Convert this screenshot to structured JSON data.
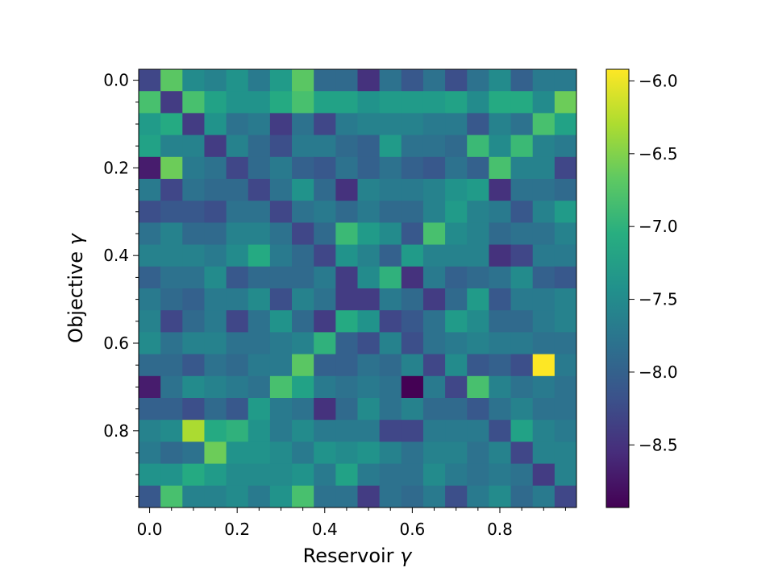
{
  "chart_data": {
    "type": "heatmap",
    "xlabel_text": "Reservoir ",
    "xlabel_symbol": "γ",
    "ylabel_text": "Objective ",
    "ylabel_symbol": "γ",
    "x_range": [
      -0.025,
      0.975
    ],
    "y_range": [
      -0.025,
      0.975
    ],
    "y_inverted": true,
    "x_ticks": [
      "0.0",
      "0.2",
      "0.4",
      "0.6",
      "0.8"
    ],
    "y_ticks": [
      "0.0",
      "0.2",
      "0.4",
      "0.6",
      "0.8"
    ],
    "tick_values": [
      0.0,
      0.2,
      0.4,
      0.6,
      0.8
    ],
    "minor_tick_values": [
      0.05,
      0.1,
      0.15,
      0.25,
      0.3,
      0.35,
      0.45,
      0.5,
      0.55,
      0.65,
      0.7,
      0.75,
      0.85,
      0.9,
      0.95
    ],
    "grid_step": 0.05,
    "grid_size": 20,
    "colormap": "viridis",
    "colorbar_range": [
      -8.93,
      -5.92
    ],
    "colorbar_ticks": [
      "−6.0",
      "−6.5",
      "−7.0",
      "−7.5",
      "−8.0",
      "−8.5"
    ],
    "colorbar_tick_values": [
      -6.0,
      -6.5,
      -7.0,
      -7.5,
      -8.0,
      -8.5
    ],
    "grid": false,
    "values": [
      [
        -8.3,
        -6.7,
        -7.5,
        -7.6,
        -7.4,
        -7.7,
        -7.3,
        -6.7,
        -7.9,
        -7.9,
        -8.5,
        -7.8,
        -8.1,
        -7.8,
        -8.2,
        -7.8,
        -7.5,
        -8.0,
        -7.7,
        -7.7
      ],
      [
        -6.8,
        -8.4,
        -6.8,
        -7.2,
        -7.4,
        -7.4,
        -7.1,
        -6.8,
        -7.2,
        -7.2,
        -7.4,
        -7.3,
        -7.3,
        -7.3,
        -7.2,
        -7.5,
        -7.1,
        -7.1,
        -7.5,
        -6.6
      ],
      [
        -7.3,
        -7.1,
        -8.4,
        -7.4,
        -7.8,
        -7.7,
        -8.4,
        -7.8,
        -8.3,
        -7.7,
        -7.6,
        -7.6,
        -7.6,
        -7.7,
        -7.7,
        -8.1,
        -7.6,
        -7.8,
        -6.8,
        -7.2
      ],
      [
        -7.2,
        -7.6,
        -7.6,
        -8.4,
        -7.6,
        -7.9,
        -8.2,
        -7.7,
        -7.7,
        -7.9,
        -8.0,
        -7.3,
        -7.8,
        -7.8,
        -7.9,
        -6.9,
        -7.5,
        -6.9,
        -7.6,
        -7.7
      ],
      [
        -8.7,
        -6.6,
        -7.7,
        -7.8,
        -8.3,
        -7.9,
        -7.7,
        -8.0,
        -8.1,
        -7.8,
        -8.0,
        -7.8,
        -8.0,
        -8.1,
        -7.8,
        -8.0,
        -6.8,
        -7.6,
        -7.6,
        -8.3
      ],
      [
        -7.7,
        -8.3,
        -7.8,
        -7.9,
        -7.9,
        -8.3,
        -7.8,
        -7.4,
        -7.9,
        -8.5,
        -7.6,
        -7.7,
        -7.7,
        -7.6,
        -7.4,
        -7.3,
        -8.5,
        -7.8,
        -7.8,
        -7.9
      ],
      [
        -8.2,
        -8.1,
        -8.1,
        -8.2,
        -7.8,
        -7.8,
        -8.3,
        -7.8,
        -7.7,
        -7.9,
        -7.7,
        -7.9,
        -7.9,
        -7.6,
        -7.3,
        -7.6,
        -7.7,
        -8.1,
        -7.6,
        -7.3
      ],
      [
        -7.8,
        -7.6,
        -7.9,
        -7.9,
        -7.6,
        -7.6,
        -7.8,
        -8.3,
        -7.9,
        -6.9,
        -7.3,
        -7.5,
        -8.1,
        -6.8,
        -7.5,
        -7.6,
        -7.9,
        -7.8,
        -7.8,
        -7.6
      ],
      [
        -7.6,
        -7.6,
        -7.6,
        -7.7,
        -7.5,
        -7.1,
        -7.7,
        -7.9,
        -8.3,
        -7.4,
        -7.6,
        -8.0,
        -7.3,
        -7.6,
        -7.6,
        -7.6,
        -8.5,
        -8.3,
        -7.7,
        -7.7
      ],
      [
        -8.0,
        -7.8,
        -7.8,
        -7.5,
        -8.1,
        -7.9,
        -7.9,
        -7.9,
        -7.7,
        -8.4,
        -7.5,
        -7.0,
        -8.5,
        -7.7,
        -8.0,
        -7.9,
        -7.8,
        -7.5,
        -8.0,
        -8.1
      ],
      [
        -7.7,
        -7.9,
        -8.0,
        -7.7,
        -7.7,
        -7.5,
        -8.2,
        -7.6,
        -7.8,
        -8.4,
        -8.4,
        -7.7,
        -7.9,
        -8.4,
        -7.9,
        -7.3,
        -8.1,
        -7.7,
        -7.7,
        -7.6
      ],
      [
        -7.6,
        -8.3,
        -7.9,
        -7.7,
        -8.3,
        -7.8,
        -7.4,
        -7.9,
        -8.4,
        -7.1,
        -7.4,
        -8.3,
        -8.1,
        -7.8,
        -7.3,
        -7.5,
        -7.9,
        -7.9,
        -7.7,
        -7.6
      ],
      [
        -7.5,
        -7.8,
        -7.6,
        -7.6,
        -7.8,
        -7.8,
        -7.7,
        -7.6,
        -7.0,
        -8.0,
        -8.2,
        -7.6,
        -8.2,
        -7.8,
        -7.7,
        -7.6,
        -7.7,
        -7.7,
        -7.8,
        -7.8
      ],
      [
        -7.9,
        -7.9,
        -8.1,
        -7.8,
        -7.9,
        -7.7,
        -7.7,
        -6.7,
        -8.0,
        -8.0,
        -7.8,
        -7.9,
        -7.6,
        -8.3,
        -7.5,
        -8.1,
        -8.0,
        -8.2,
        -5.92,
        -7.7
      ],
      [
        -8.7,
        -7.8,
        -7.5,
        -7.6,
        -7.7,
        -7.8,
        -6.8,
        -7.2,
        -7.7,
        -7.8,
        -7.7,
        -7.8,
        -8.93,
        -7.7,
        -8.3,
        -6.8,
        -7.6,
        -7.8,
        -7.7,
        -7.8
      ],
      [
        -8.0,
        -8.0,
        -8.2,
        -7.9,
        -8.1,
        -7.3,
        -7.7,
        -7.8,
        -8.5,
        -7.9,
        -7.5,
        -7.8,
        -7.6,
        -7.9,
        -7.9,
        -8.1,
        -7.8,
        -7.6,
        -7.8,
        -7.8
      ],
      [
        -7.6,
        -7.5,
        -6.3,
        -7.1,
        -7.0,
        -7.4,
        -7.7,
        -7.5,
        -7.7,
        -7.7,
        -7.7,
        -8.3,
        -8.3,
        -7.7,
        -7.7,
        -7.7,
        -8.2,
        -7.2,
        -7.6,
        -7.7
      ],
      [
        -7.7,
        -7.9,
        -7.8,
        -6.6,
        -7.4,
        -7.4,
        -7.5,
        -7.7,
        -7.4,
        -7.5,
        -7.4,
        -7.6,
        -7.8,
        -7.6,
        -7.6,
        -7.8,
        -7.6,
        -8.3,
        -7.6,
        -7.6
      ],
      [
        -7.4,
        -7.4,
        -7.1,
        -7.3,
        -7.5,
        -7.5,
        -7.5,
        -7.4,
        -7.7,
        -7.2,
        -7.7,
        -7.8,
        -7.8,
        -7.5,
        -7.7,
        -7.8,
        -7.7,
        -7.8,
        -8.4,
        -7.6
      ],
      [
        -8.1,
        -6.8,
        -7.6,
        -7.6,
        -7.5,
        -7.7,
        -7.4,
        -6.8,
        -7.8,
        -7.8,
        -8.4,
        -7.8,
        -7.9,
        -7.7,
        -8.2,
        -7.7,
        -7.5,
        -7.9,
        -7.7,
        -8.3
      ]
    ]
  }
}
